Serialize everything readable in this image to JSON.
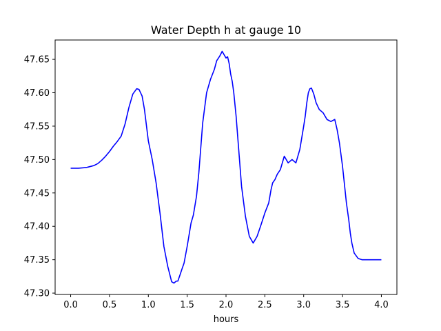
{
  "chart_data": {
    "type": "line",
    "title": "Water Depth h at gauge 10",
    "xlabel": "hours",
    "ylabel": "",
    "xlim": [
      -0.2,
      4.2
    ],
    "ylim": [
      47.298,
      47.679
    ],
    "x_ticks": [
      0.0,
      0.5,
      1.0,
      1.5,
      2.0,
      2.5,
      3.0,
      3.5,
      4.0
    ],
    "x_tick_labels": [
      "0.0",
      "0.5",
      "1.0",
      "1.5",
      "2.0",
      "2.5",
      "3.0",
      "3.5",
      "4.0"
    ],
    "y_ticks": [
      47.3,
      47.35,
      47.4,
      47.45,
      47.5,
      47.55,
      47.6,
      47.65
    ],
    "y_tick_labels": [
      "47.30",
      "47.35",
      "47.40",
      "47.45",
      "47.50",
      "47.55",
      "47.60",
      "47.65"
    ],
    "grid": false,
    "series": [
      {
        "color": "#0000ff",
        "x": [
          0.0,
          0.1,
          0.2,
          0.3,
          0.35,
          0.4,
          0.45,
          0.5,
          0.55,
          0.6,
          0.65,
          0.7,
          0.75,
          0.8,
          0.85,
          0.88,
          0.92,
          0.95,
          1.0,
          1.05,
          1.1,
          1.15,
          1.2,
          1.25,
          1.3,
          1.33,
          1.36,
          1.38,
          1.41,
          1.43,
          1.46,
          1.5,
          1.55,
          1.58,
          1.62,
          1.65,
          1.7,
          1.75,
          1.8,
          1.85,
          1.88,
          1.92,
          1.95,
          1.97,
          2.0,
          2.02,
          2.04,
          2.06,
          2.08,
          2.1,
          2.13,
          2.16,
          2.2,
          2.25,
          2.3,
          2.35,
          2.4,
          2.45,
          2.5,
          2.55,
          2.58,
          2.6,
          2.63,
          2.66,
          2.7,
          2.75,
          2.8,
          2.85,
          2.9,
          2.95,
          3.0,
          3.02,
          3.04,
          3.06,
          3.08,
          3.1,
          3.13,
          3.16,
          3.2,
          3.25,
          3.3,
          3.35,
          3.4,
          3.43,
          3.46,
          3.5,
          3.55,
          3.58,
          3.6,
          3.62,
          3.65,
          3.7,
          3.75,
          3.8,
          3.85,
          3.9,
          3.95,
          4.0
        ],
        "y": [
          47.487,
          47.487,
          47.488,
          47.491,
          47.494,
          47.499,
          47.505,
          47.512,
          47.52,
          47.527,
          47.535,
          47.553,
          47.578,
          47.598,
          47.606,
          47.605,
          47.595,
          47.575,
          47.528,
          47.5,
          47.465,
          47.42,
          47.37,
          47.34,
          47.317,
          47.315,
          47.318,
          47.318,
          47.328,
          47.335,
          47.345,
          47.37,
          47.405,
          47.417,
          47.445,
          47.48,
          47.555,
          47.6,
          47.62,
          47.635,
          47.648,
          47.655,
          47.662,
          47.658,
          47.652,
          47.654,
          47.644,
          47.628,
          47.617,
          47.6,
          47.565,
          47.52,
          47.46,
          47.415,
          47.385,
          47.375,
          47.385,
          47.402,
          47.42,
          47.435,
          47.455,
          47.465,
          47.47,
          47.478,
          47.485,
          47.505,
          47.495,
          47.5,
          47.495,
          47.515,
          47.55,
          47.565,
          47.585,
          47.6,
          47.606,
          47.607,
          47.598,
          47.585,
          47.575,
          47.57,
          47.56,
          47.557,
          47.56,
          47.545,
          47.525,
          47.49,
          47.435,
          47.41,
          47.39,
          47.375,
          47.36,
          47.352,
          47.35,
          47.35,
          47.35,
          47.35,
          47.35,
          47.35
        ]
      }
    ]
  }
}
